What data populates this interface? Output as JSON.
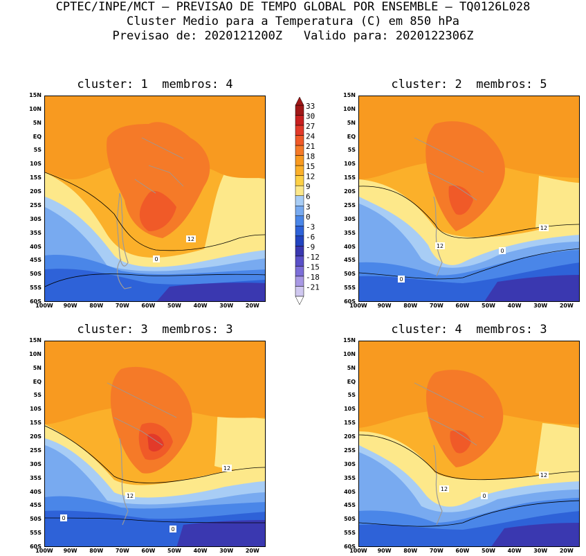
{
  "header": {
    "line1": "CPTEC/INPE/MCT – PREVISAO DE TEMPO GLOBAL POR ENSEMBLE – TQ0126L028",
    "line2": "Cluster Medio para a Temperatura (C) em 850 hPa",
    "line3": "Previsao de: 2020121200Z   Valido para: 2020122306Z"
  },
  "panels": [
    {
      "title": "cluster: 1  membros: 4"
    },
    {
      "title": "cluster: 2  membros: 5"
    },
    {
      "title": "cluster: 3  membros: 3"
    },
    {
      "title": "cluster: 4  membros: 3"
    }
  ],
  "lat_labels": [
    "15N",
    "10N",
    "5N",
    "EQ",
    "5S",
    "10S",
    "15S",
    "20S",
    "25S",
    "30S",
    "35S",
    "40S",
    "45S",
    "50S",
    "55S",
    "60S"
  ],
  "lon_labels": [
    "100W",
    "90W",
    "80W",
    "70W",
    "60W",
    "50W",
    "40W",
    "30W",
    "20W"
  ],
  "colorbar": {
    "labels": [
      "33",
      "30",
      "27",
      "24",
      "21",
      "18",
      "15",
      "12",
      "9",
      "6",
      "3",
      "0",
      "-3",
      "-6",
      "-9",
      "-12",
      "-15",
      "-18",
      "-21"
    ],
    "colors": [
      "#a01818",
      "#c82020",
      "#e23a2a",
      "#f05a28",
      "#f57a28",
      "#f89a20",
      "#fbb02a",
      "#fdd045",
      "#fde88a",
      "#a8cdf5",
      "#78aaf0",
      "#4a86e8",
      "#2e62d8",
      "#2244c0",
      "#3a38b0",
      "#5a50c8",
      "#7c6ed8",
      "#a898e4",
      "#d0c8f0"
    ]
  },
  "contour_labels": {
    "p1": [
      "12",
      "0"
    ],
    "p2": [
      "12",
      "12",
      "0",
      "0"
    ],
    "p3": [
      "12",
      "12",
      "0",
      "0"
    ],
    "p4": [
      "12",
      "12",
      "0"
    ]
  }
}
